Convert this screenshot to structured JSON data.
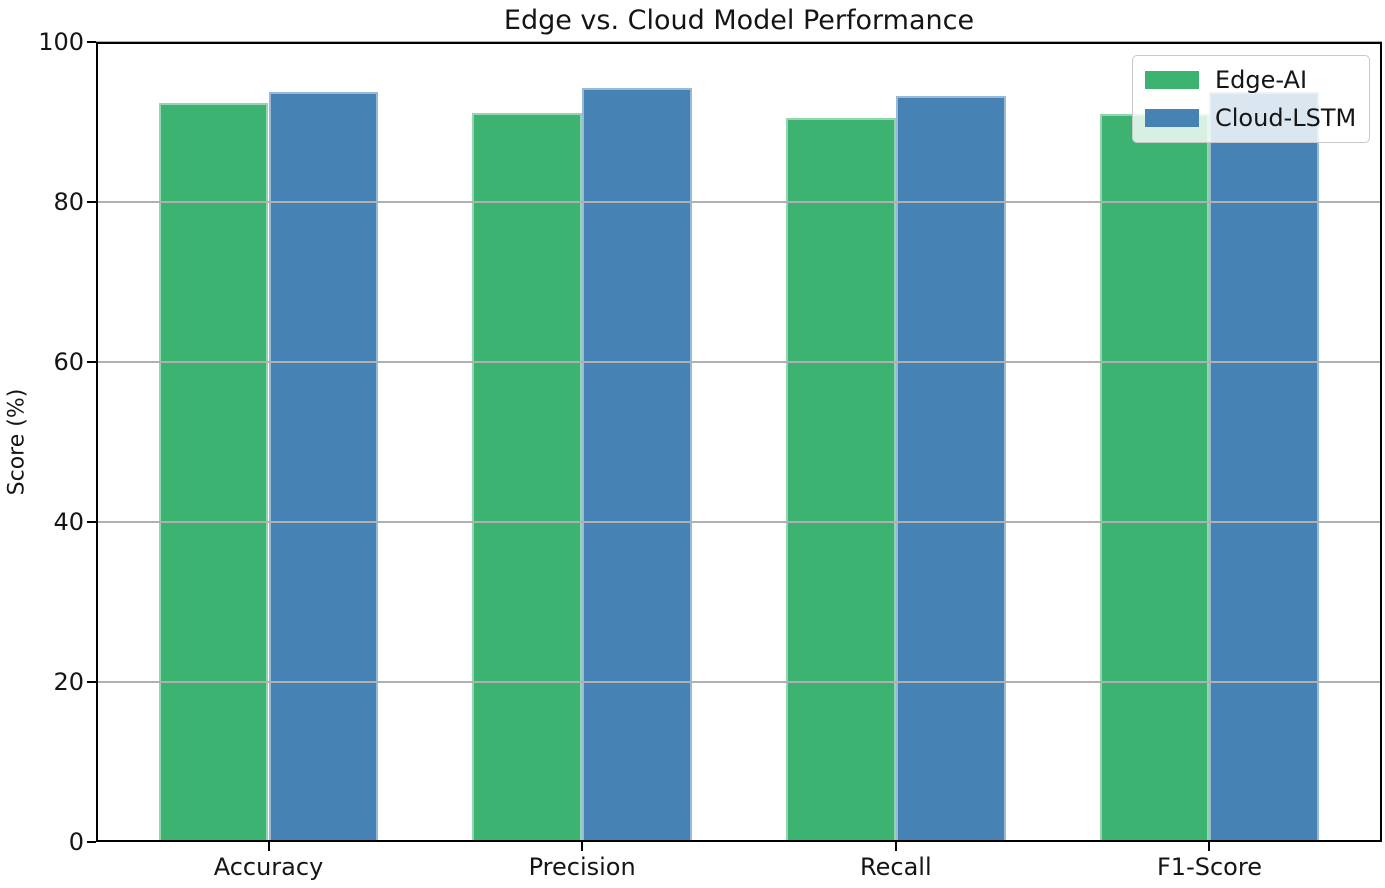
{
  "chart_data": {
    "type": "bar",
    "title": "Edge vs. Cloud Model Performance",
    "xlabel": "",
    "ylabel": "Score (%)",
    "categories": [
      "Accuracy",
      "Precision",
      "Recall",
      "F1-Score"
    ],
    "series": [
      {
        "name": "Edge-AI",
        "color": "#3cb371",
        "values": [
          92.4,
          91.1,
          90.5,
          91.0
        ]
      },
      {
        "name": "Cloud-LSTM",
        "color": "#4682b4",
        "values": [
          93.8,
          94.2,
          93.3,
          93.8
        ]
      }
    ],
    "ylim": [
      0,
      100
    ],
    "yticks": [
      0,
      20,
      40,
      60,
      80,
      100
    ],
    "grid": "horizontal",
    "grid_color": "#b0b0b0",
    "grid_above_bars": true,
    "legend_position": "upper right",
    "bar_width_fraction": 0.35,
    "background_color": "#ffffff",
    "spine_color": "#000000"
  }
}
